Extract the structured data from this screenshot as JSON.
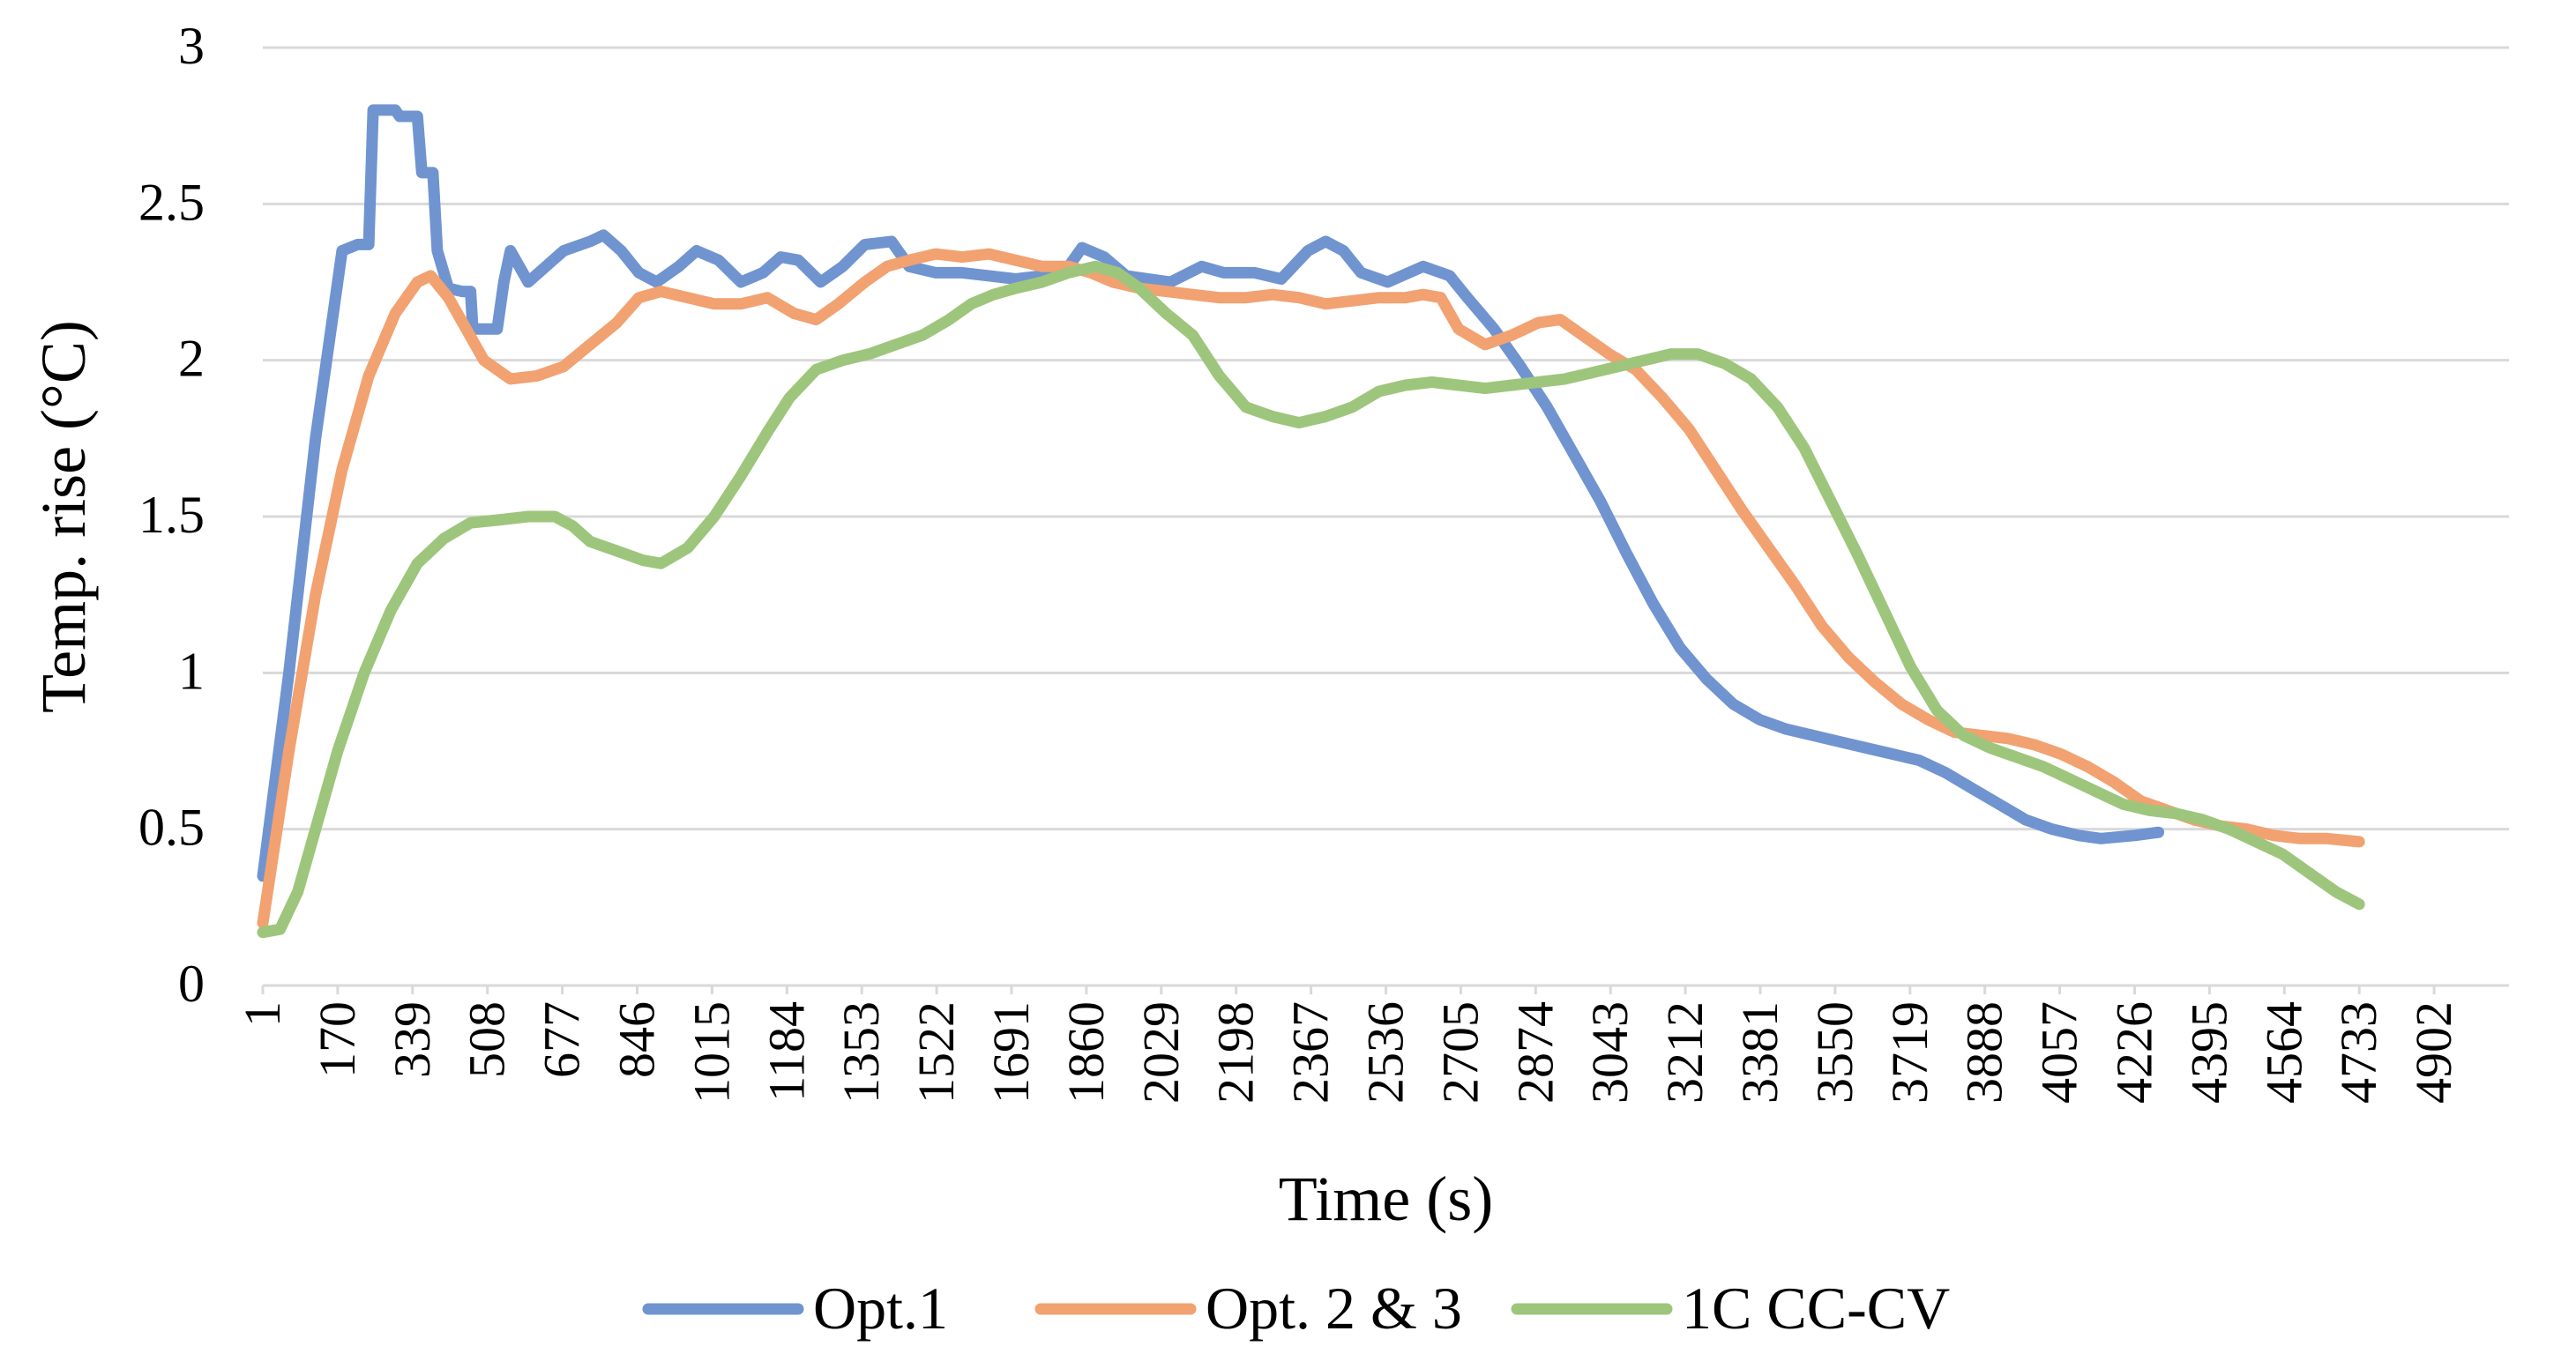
{
  "chart_data": {
    "type": "line",
    "title": "",
    "xlabel": "Time (s)",
    "ylabel": "Temp. rise (°C)",
    "xlim": [
      1,
      5071
    ],
    "ylim": [
      0,
      3
    ],
    "x_tick_labels": [
      "1",
      "170",
      "339",
      "508",
      "677",
      "846",
      "1015",
      "1184",
      "1353",
      "1522",
      "1691",
      "1860",
      "2029",
      "2198",
      "2367",
      "2536",
      "2705",
      "2874",
      "3043",
      "3212",
      "3381",
      "3550",
      "3719",
      "3888",
      "4057",
      "4226",
      "4395",
      "4564",
      "4733",
      "4902"
    ],
    "y_tick_labels": [
      "0",
      "0.5",
      "1",
      "1.5",
      "2",
      "2.5",
      "3"
    ],
    "y_ticks": [
      0,
      0.5,
      1,
      1.5,
      2,
      2.5,
      3
    ],
    "grid": true,
    "legend_position": "bottom",
    "series": [
      {
        "name": "Opt.1",
        "color": "#7094d0",
        "points": [
          [
            1,
            0.35
          ],
          [
            60,
            1.0
          ],
          [
            120,
            1.75
          ],
          [
            180,
            2.35
          ],
          [
            215,
            2.37
          ],
          [
            240,
            2.37
          ],
          [
            250,
            2.8
          ],
          [
            300,
            2.8
          ],
          [
            310,
            2.78
          ],
          [
            350,
            2.78
          ],
          [
            360,
            2.6
          ],
          [
            385,
            2.6
          ],
          [
            395,
            2.35
          ],
          [
            420,
            2.23
          ],
          [
            450,
            2.22
          ],
          [
            470,
            2.22
          ],
          [
            475,
            2.1
          ],
          [
            530,
            2.1
          ],
          [
            545,
            2.25
          ],
          [
            560,
            2.35
          ],
          [
            580,
            2.3
          ],
          [
            600,
            2.25
          ],
          [
            640,
            2.3
          ],
          [
            680,
            2.35
          ],
          [
            740,
            2.38
          ],
          [
            770,
            2.4
          ],
          [
            810,
            2.35
          ],
          [
            850,
            2.28
          ],
          [
            890,
            2.25
          ],
          [
            940,
            2.3
          ],
          [
            980,
            2.35
          ],
          [
            1030,
            2.32
          ],
          [
            1080,
            2.25
          ],
          [
            1130,
            2.28
          ],
          [
            1170,
            2.33
          ],
          [
            1210,
            2.32
          ],
          [
            1260,
            2.25
          ],
          [
            1310,
            2.3
          ],
          [
            1360,
            2.37
          ],
          [
            1420,
            2.38
          ],
          [
            1460,
            2.3
          ],
          [
            1520,
            2.28
          ],
          [
            1580,
            2.28
          ],
          [
            1640,
            2.27
          ],
          [
            1700,
            2.26
          ],
          [
            1760,
            2.27
          ],
          [
            1820,
            2.3
          ],
          [
            1850,
            2.36
          ],
          [
            1900,
            2.33
          ],
          [
            1950,
            2.27
          ],
          [
            2050,
            2.25
          ],
          [
            2120,
            2.3
          ],
          [
            2170,
            2.28
          ],
          [
            2240,
            2.28
          ],
          [
            2300,
            2.26
          ],
          [
            2360,
            2.35
          ],
          [
            2400,
            2.38
          ],
          [
            2440,
            2.35
          ],
          [
            2480,
            2.28
          ],
          [
            2540,
            2.25
          ],
          [
            2620,
            2.3
          ],
          [
            2680,
            2.27
          ],
          [
            2720,
            2.2
          ],
          [
            2780,
            2.1
          ],
          [
            2840,
            1.98
          ],
          [
            2900,
            1.85
          ],
          [
            2960,
            1.7
          ],
          [
            3020,
            1.55
          ],
          [
            3080,
            1.38
          ],
          [
            3140,
            1.22
          ],
          [
            3200,
            1.08
          ],
          [
            3260,
            0.98
          ],
          [
            3320,
            0.9
          ],
          [
            3380,
            0.85
          ],
          [
            3440,
            0.82
          ],
          [
            3500,
            0.8
          ],
          [
            3560,
            0.78
          ],
          [
            3620,
            0.76
          ],
          [
            3680,
            0.74
          ],
          [
            3740,
            0.72
          ],
          [
            3800,
            0.68
          ],
          [
            3860,
            0.63
          ],
          [
            3920,
            0.58
          ],
          [
            3980,
            0.53
          ],
          [
            4040,
            0.5
          ],
          [
            4100,
            0.48
          ],
          [
            4150,
            0.47
          ],
          [
            4226,
            0.48
          ],
          [
            4280,
            0.49
          ]
        ]
      },
      {
        "name": "Opt. 2 & 3",
        "color": "#f2a171",
        "points": [
          [
            1,
            0.2
          ],
          [
            60,
            0.75
          ],
          [
            120,
            1.25
          ],
          [
            180,
            1.65
          ],
          [
            240,
            1.95
          ],
          [
            300,
            2.15
          ],
          [
            350,
            2.25
          ],
          [
            380,
            2.27
          ],
          [
            420,
            2.2
          ],
          [
            460,
            2.1
          ],
          [
            500,
            2.0
          ],
          [
            560,
            1.94
          ],
          [
            620,
            1.95
          ],
          [
            680,
            1.98
          ],
          [
            740,
            2.05
          ],
          [
            800,
            2.12
          ],
          [
            850,
            2.2
          ],
          [
            900,
            2.22
          ],
          [
            960,
            2.2
          ],
          [
            1020,
            2.18
          ],
          [
            1080,
            2.18
          ],
          [
            1140,
            2.2
          ],
          [
            1200,
            2.15
          ],
          [
            1250,
            2.13
          ],
          [
            1300,
            2.18
          ],
          [
            1360,
            2.25
          ],
          [
            1410,
            2.3
          ],
          [
            1460,
            2.32
          ],
          [
            1520,
            2.34
          ],
          [
            1580,
            2.33
          ],
          [
            1640,
            2.34
          ],
          [
            1700,
            2.32
          ],
          [
            1760,
            2.3
          ],
          [
            1820,
            2.3
          ],
          [
            1870,
            2.28
          ],
          [
            1920,
            2.25
          ],
          [
            1980,
            2.23
          ],
          [
            2040,
            2.22
          ],
          [
            2100,
            2.21
          ],
          [
            2160,
            2.2
          ],
          [
            2220,
            2.2
          ],
          [
            2280,
            2.21
          ],
          [
            2340,
            2.2
          ],
          [
            2400,
            2.18
          ],
          [
            2460,
            2.19
          ],
          [
            2520,
            2.2
          ],
          [
            2580,
            2.2
          ],
          [
            2620,
            2.21
          ],
          [
            2660,
            2.2
          ],
          [
            2700,
            2.1
          ],
          [
            2760,
            2.05
          ],
          [
            2820,
            2.08
          ],
          [
            2880,
            2.12
          ],
          [
            2930,
            2.13
          ],
          [
            2980,
            2.08
          ],
          [
            3040,
            2.02
          ],
          [
            3100,
            1.97
          ],
          [
            3160,
            1.88
          ],
          [
            3220,
            1.78
          ],
          [
            3280,
            1.65
          ],
          [
            3340,
            1.52
          ],
          [
            3400,
            1.4
          ],
          [
            3460,
            1.28
          ],
          [
            3520,
            1.15
          ],
          [
            3580,
            1.05
          ],
          [
            3640,
            0.97
          ],
          [
            3700,
            0.9
          ],
          [
            3760,
            0.85
          ],
          [
            3820,
            0.81
          ],
          [
            3880,
            0.8
          ],
          [
            3940,
            0.79
          ],
          [
            4000,
            0.77
          ],
          [
            4060,
            0.74
          ],
          [
            4120,
            0.7
          ],
          [
            4180,
            0.65
          ],
          [
            4240,
            0.59
          ],
          [
            4300,
            0.56
          ],
          [
            4360,
            0.53
          ],
          [
            4420,
            0.51
          ],
          [
            4480,
            0.5
          ],
          [
            4540,
            0.48
          ],
          [
            4600,
            0.47
          ],
          [
            4660,
            0.47
          ],
          [
            4733,
            0.46
          ]
        ]
      },
      {
        "name": "1C CC-CV",
        "color": "#9dc67c",
        "points": [
          [
            1,
            0.17
          ],
          [
            40,
            0.18
          ],
          [
            80,
            0.3
          ],
          [
            120,
            0.5
          ],
          [
            170,
            0.75
          ],
          [
            230,
            1.0
          ],
          [
            290,
            1.2
          ],
          [
            350,
            1.35
          ],
          [
            410,
            1.43
          ],
          [
            470,
            1.48
          ],
          [
            540,
            1.49
          ],
          [
            600,
            1.5
          ],
          [
            660,
            1.5
          ],
          [
            700,
            1.47
          ],
          [
            740,
            1.42
          ],
          [
            800,
            1.39
          ],
          [
            860,
            1.36
          ],
          [
            900,
            1.35
          ],
          [
            960,
            1.4
          ],
          [
            1020,
            1.5
          ],
          [
            1080,
            1.63
          ],
          [
            1140,
            1.77
          ],
          [
            1190,
            1.88
          ],
          [
            1250,
            1.97
          ],
          [
            1310,
            2.0
          ],
          [
            1370,
            2.02
          ],
          [
            1430,
            2.05
          ],
          [
            1490,
            2.08
          ],
          [
            1550,
            2.13
          ],
          [
            1600,
            2.18
          ],
          [
            1650,
            2.21
          ],
          [
            1700,
            2.23
          ],
          [
            1760,
            2.25
          ],
          [
            1820,
            2.28
          ],
          [
            1880,
            2.3
          ],
          [
            1930,
            2.28
          ],
          [
            1980,
            2.23
          ],
          [
            2040,
            2.15
          ],
          [
            2100,
            2.08
          ],
          [
            2160,
            1.95
          ],
          [
            2220,
            1.85
          ],
          [
            2280,
            1.82
          ],
          [
            2340,
            1.8
          ],
          [
            2400,
            1.82
          ],
          [
            2460,
            1.85
          ],
          [
            2520,
            1.9
          ],
          [
            2580,
            1.92
          ],
          [
            2640,
            1.93
          ],
          [
            2700,
            1.92
          ],
          [
            2760,
            1.91
          ],
          [
            2820,
            1.92
          ],
          [
            2880,
            1.93
          ],
          [
            2940,
            1.94
          ],
          [
            3000,
            1.96
          ],
          [
            3060,
            1.98
          ],
          [
            3120,
            2.0
          ],
          [
            3180,
            2.02
          ],
          [
            3240,
            2.02
          ],
          [
            3300,
            1.99
          ],
          [
            3360,
            1.94
          ],
          [
            3420,
            1.85
          ],
          [
            3480,
            1.72
          ],
          [
            3540,
            1.55
          ],
          [
            3600,
            1.38
          ],
          [
            3660,
            1.2
          ],
          [
            3720,
            1.02
          ],
          [
            3780,
            0.88
          ],
          [
            3840,
            0.8
          ],
          [
            3900,
            0.76
          ],
          [
            3960,
            0.73
          ],
          [
            4020,
            0.7
          ],
          [
            4080,
            0.66
          ],
          [
            4140,
            0.62
          ],
          [
            4200,
            0.58
          ],
          [
            4260,
            0.56
          ],
          [
            4320,
            0.55
          ],
          [
            4380,
            0.53
          ],
          [
            4440,
            0.5
          ],
          [
            4500,
            0.46
          ],
          [
            4560,
            0.42
          ],
          [
            4620,
            0.36
          ],
          [
            4680,
            0.3
          ],
          [
            4733,
            0.26
          ]
        ]
      }
    ]
  }
}
